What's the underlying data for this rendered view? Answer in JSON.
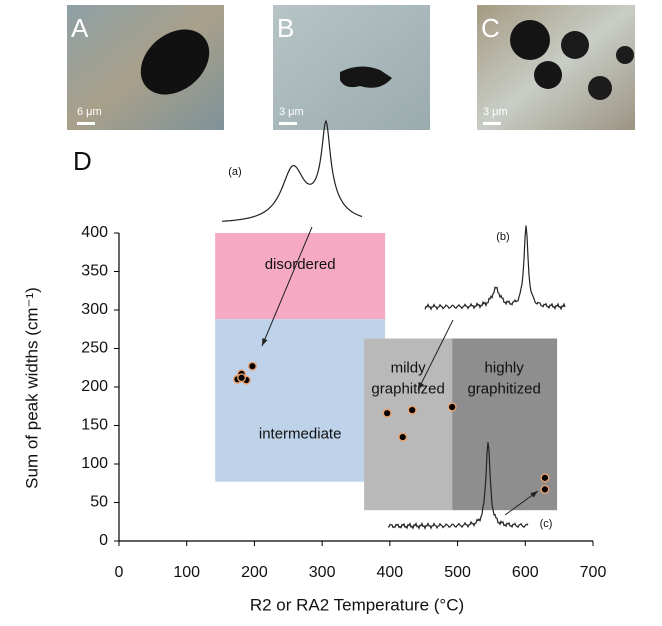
{
  "panels": [
    {
      "label": "A",
      "scale": "6 μm"
    },
    {
      "label": "B",
      "scale": "3 μm"
    },
    {
      "label": "C",
      "scale": "3 μm"
    }
  ],
  "chart_label": "D",
  "chart_data": {
    "type": "scatter",
    "x_label": "R2 or RA2 Temperature (°C)",
    "y_label": "Sum of peak widths (cm⁻¹)",
    "xlim": [
      0,
      700
    ],
    "xticks": [
      0,
      100,
      200,
      300,
      400,
      500,
      600,
      700
    ],
    "ylim": [
      0,
      400
    ],
    "yticks": [
      0,
      50,
      100,
      150,
      200,
      250,
      300,
      350,
      400
    ],
    "regions": [
      {
        "label": "disordered",
        "x": [
          142,
          393
        ],
        "y": [
          288,
          400
        ],
        "color": "#f6a9c2"
      },
      {
        "label": "intermediate",
        "x": [
          142,
          393
        ],
        "y": [
          77,
          288
        ],
        "color": "#bed3ea"
      },
      {
        "label": "mildy graphitized",
        "x": [
          362,
          492
        ],
        "y": [
          40,
          263
        ],
        "color": "#b9b9b9"
      },
      {
        "label": "highly graphitized",
        "x": [
          492,
          647
        ],
        "y": [
          40,
          263
        ],
        "color": "#8e8e8e"
      }
    ],
    "insets": [
      "(a)",
      "(b)",
      "(c)"
    ],
    "color": "#000000",
    "x": [
      175,
      181,
      188,
      197,
      181,
      396,
      433,
      419,
      492,
      629,
      629
    ],
    "values": [
      210,
      217,
      209,
      227,
      212,
      166,
      170,
      135,
      174,
      82,
      67
    ]
  }
}
